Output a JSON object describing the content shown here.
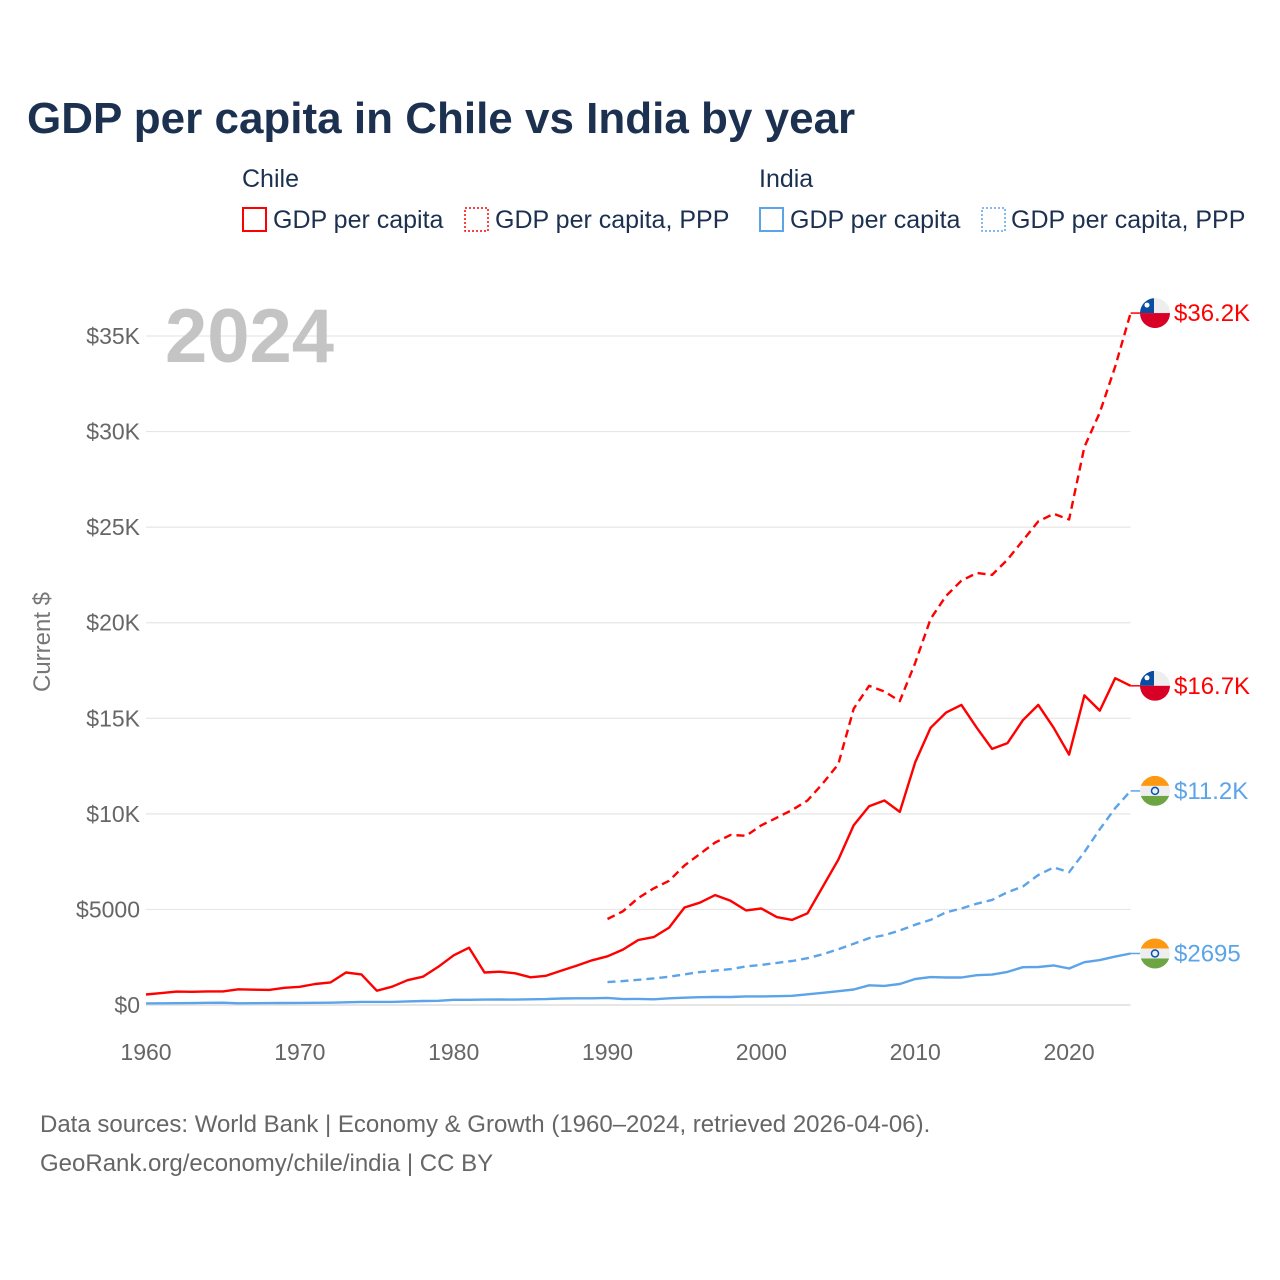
{
  "chart_data": {
    "type": "line",
    "title": "GDP per capita in Chile vs India by year",
    "ylabel": "Current $",
    "xlabel": "",
    "xlim": [
      1960,
      2024
    ],
    "ylim": [
      0,
      37500
    ],
    "grid": true,
    "current_year": "2024",
    "legend_placement": "top",
    "x_ticks": [
      1960,
      1970,
      1980,
      1990,
      2000,
      2010,
      2020
    ],
    "x_tick_labels": [
      "1960",
      "1970",
      "1980",
      "1990",
      "2000",
      "2010",
      "2020"
    ],
    "y_ticks": [
      0,
      5000,
      10000,
      15000,
      20000,
      25000,
      30000,
      35000
    ],
    "y_tick_labels": [
      "$0",
      "$5000",
      "$10K",
      "$15K",
      "$20K",
      "$25K",
      "$30K",
      "$35K"
    ],
    "legend": {
      "groups": [
        {
          "country": "Chile",
          "items": [
            "GDP per capita",
            "GDP per capita, PPP"
          ]
        },
        {
          "country": "India",
          "items": [
            "GDP per capita",
            "GDP per capita, PPP"
          ]
        }
      ]
    },
    "colors": {
      "Chile": "#ff0000",
      "India": "#5ca4e8",
      "title": "#1c3050"
    },
    "series": [
      {
        "name": "Chile GDP per capita",
        "country": "Chile",
        "style": "solid",
        "start": 1960,
        "end_label": "$16.7K",
        "values": [
          550,
          620,
          700,
          690,
          710,
          710,
          820,
          800,
          790,
          900,
          950,
          1100,
          1180,
          1700,
          1600,
          750,
          960,
          1300,
          1480,
          2000,
          2600,
          3000,
          1700,
          1740,
          1660,
          1450,
          1530,
          1800,
          2060,
          2340,
          2550,
          2900,
          3400,
          3550,
          4050,
          5100,
          5350,
          5750,
          5450,
          4950,
          5050,
          4600,
          4450,
          4800,
          6200,
          7600,
          9400,
          10400,
          10700,
          10100,
          12700,
          14500,
          15300,
          15700,
          14500,
          13400,
          13700,
          14900,
          15700,
          14500,
          13100,
          16200,
          15400,
          17100,
          16700
        ]
      },
      {
        "name": "Chile GDP per capita, PPP",
        "country": "Chile",
        "style": "dashed",
        "start": 1990,
        "end_label": "$36.2K",
        "values": [
          4500,
          4900,
          5600,
          6100,
          6500,
          7300,
          7900,
          8500,
          8900,
          8850,
          9400,
          9800,
          10200,
          10700,
          11600,
          12600,
          15500,
          16700,
          16400,
          15900,
          17900,
          20200,
          21400,
          22200,
          22600,
          22500,
          23300,
          24300,
          25300,
          25700,
          25400,
          29200,
          31000,
          33400,
          36200
        ]
      },
      {
        "name": "India GDP per capita",
        "country": "India",
        "style": "solid",
        "start": 1960,
        "end_label": "$2695",
        "values": [
          85,
          90,
          95,
          100,
          115,
          120,
          90,
          95,
          100,
          105,
          110,
          115,
          120,
          140,
          160,
          160,
          160,
          190,
          210,
          220,
          270,
          270,
          280,
          290,
          280,
          300,
          310,
          340,
          350,
          350,
          370,
          310,
          320,
          300,
          350,
          380,
          410,
          420,
          420,
          450,
          450,
          460,
          480,
          560,
          640,
          720,
          810,
          1030,
          1000,
          1100,
          1360,
          1460,
          1440,
          1440,
          1560,
          1590,
          1730,
          1980,
          1990,
          2070,
          1910,
          2240,
          2350,
          2530,
          2695
        ]
      },
      {
        "name": "India GDP per capita, PPP",
        "country": "India",
        "style": "dashed",
        "start": 1990,
        "end_label": "$11.2K",
        "values": [
          1200,
          1250,
          1320,
          1390,
          1480,
          1600,
          1720,
          1800,
          1880,
          2020,
          2100,
          2200,
          2300,
          2450,
          2660,
          2920,
          3200,
          3500,
          3650,
          3900,
          4200,
          4450,
          4850,
          5050,
          5300,
          5500,
          5900,
          6200,
          6800,
          7200,
          6950,
          8000,
          9200,
          10300,
          11200
        ]
      }
    ]
  },
  "footer": {
    "line1": "Data sources: World Bank | Economy & Growth (1960–2024, retrieved 2026-04-06).",
    "line2": "GeoRank.org/economy/chile/india | CC BY"
  }
}
